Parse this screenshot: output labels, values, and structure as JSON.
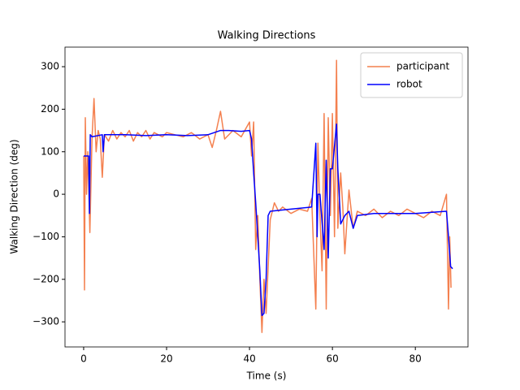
{
  "chart_data": {
    "type": "line",
    "title": "Walking Directions",
    "x_label": "Time (s)",
    "y_label": "Walking Direction (deg)",
    "xlim": [
      -4.5,
      92.7
    ],
    "ylim": [
      -359,
      346
    ],
    "xticks": [
      0,
      20,
      40,
      60,
      80
    ],
    "yticks": [
      {
        "value": -300,
        "label": "−300"
      },
      {
        "value": -200,
        "label": "−200"
      },
      {
        "value": -100,
        "label": "−100"
      },
      0,
      100,
      200,
      300
    ],
    "legend": "upper right",
    "series": [
      {
        "name": "participant",
        "color": "#f4804f",
        "x": [
          0,
          0.2,
          0.4,
          0.7,
          1,
          1.5,
          2,
          2.5,
          3,
          3.5,
          4,
          4.5,
          5,
          6,
          7,
          8,
          9,
          10,
          11,
          12,
          13,
          14,
          15,
          16,
          17,
          18,
          19,
          20,
          22,
          24,
          26,
          28,
          30,
          31,
          32,
          33,
          34,
          36,
          38,
          40,
          40.5,
          41,
          41.5,
          42,
          42.5,
          43,
          43.5,
          44,
          45,
          46,
          47,
          48,
          50,
          52,
          54,
          55,
          56,
          56.5,
          57,
          57.5,
          58,
          58.5,
          59,
          59.5,
          60,
          60.5,
          61,
          61.3,
          62,
          62.5,
          63,
          64,
          65,
          66,
          68,
          70,
          72,
          74,
          76,
          78,
          80,
          82,
          84,
          86,
          87.5,
          88,
          88.3,
          88.6
        ],
        "values": [
          90,
          -225,
          180,
          0,
          100,
          -90,
          130,
          225,
          100,
          150,
          130,
          40,
          140,
          125,
          150,
          130,
          145,
          135,
          150,
          125,
          145,
          135,
          150,
          130,
          145,
          140,
          135,
          145,
          140,
          135,
          145,
          130,
          140,
          110,
          150,
          195,
          130,
          150,
          135,
          170,
          90,
          170,
          -130,
          -50,
          -200,
          -325,
          -200,
          -280,
          -60,
          -20,
          -40,
          -30,
          -45,
          -35,
          -40,
          -10,
          -270,
          120,
          -50,
          -180,
          190,
          -270,
          180,
          -50,
          190,
          -100,
          315,
          -80,
          50,
          -30,
          -140,
          10,
          -80,
          -40,
          -50,
          -35,
          -55,
          -40,
          -50,
          -35,
          -45,
          -55,
          -40,
          -50,
          0,
          -270,
          -100,
          -220
        ]
      },
      {
        "name": "robot",
        "color": "#0000ff",
        "x": [
          0,
          1.2,
          1.4,
          1.6,
          2,
          4.5,
          4.7,
          5,
          10,
          15,
          20,
          25,
          30,
          33,
          35,
          38,
          40,
          40.5,
          41,
          41.5,
          42,
          42.5,
          43,
          43.5,
          44,
          44.5,
          45,
          50,
          55,
          56,
          56.3,
          56.5,
          57,
          58,
          58.5,
          59,
          59.5,
          60,
          61,
          61.3,
          62,
          63,
          64,
          65,
          66,
          70,
          75,
          80,
          87.5,
          88,
          88.5,
          89
        ],
        "values": [
          90,
          90,
          -45,
          140,
          135,
          140,
          100,
          140,
          140,
          138,
          140,
          138,
          140,
          150,
          150,
          148,
          150,
          130,
          50,
          -20,
          -100,
          -180,
          -285,
          -280,
          -200,
          -50,
          -40,
          -35,
          -30,
          120,
          -100,
          0,
          0,
          -130,
          80,
          -150,
          60,
          60,
          165,
          60,
          -70,
          -50,
          -40,
          -80,
          -50,
          -45,
          -45,
          -45,
          -40,
          -100,
          -170,
          -175
        ]
      }
    ]
  }
}
